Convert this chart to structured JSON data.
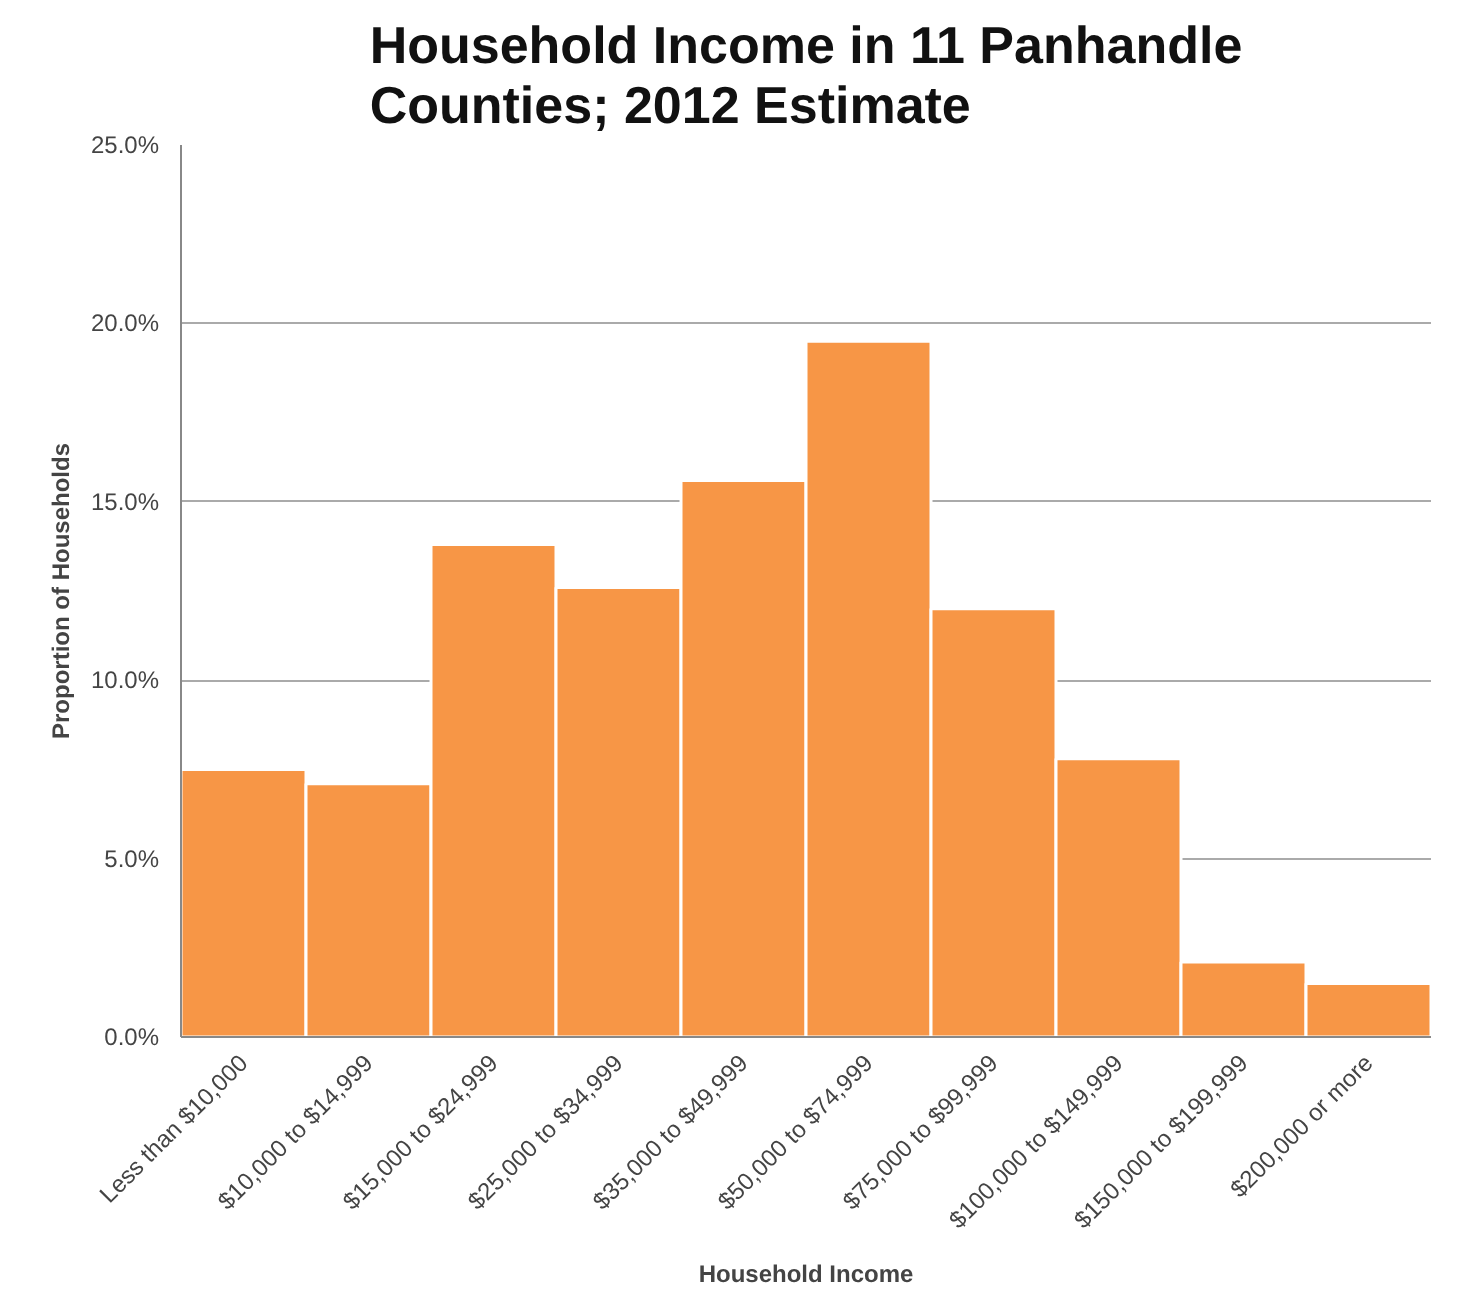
{
  "chart_data": {
    "type": "bar",
    "title": "Household Income in 11 Panhandle\nCounties; 2012 Estimate",
    "xlabel": "Household Income",
    "ylabel": "Proportion of Households",
    "categories": [
      "Less than $10,000",
      "$10,000 to $14,999",
      "$15,000 to $24,999",
      "$25,000 to $34,999",
      "$35,000 to $49,999",
      "$50,000 to $74,999",
      "$75,000 to $99,999",
      "$100,000 to $149,999",
      "$150,000 to $199,999",
      "$200,000 or more"
    ],
    "values": [
      7.5,
      7.1,
      13.8,
      12.6,
      15.6,
      19.5,
      12.0,
      7.8,
      2.1,
      1.5
    ],
    "color": "#f79646",
    "ylim": [
      0,
      25
    ],
    "yticks": [
      {
        "value": 0,
        "label": "0.0%"
      },
      {
        "value": 5,
        "label": "5.0%"
      },
      {
        "value": 10,
        "label": "10.0%"
      },
      {
        "value": 15,
        "label": "15.0%"
      },
      {
        "value": 20,
        "label": "20.0%"
      },
      {
        "value": 25,
        "label": "25.0%"
      }
    ],
    "grid": "y"
  }
}
